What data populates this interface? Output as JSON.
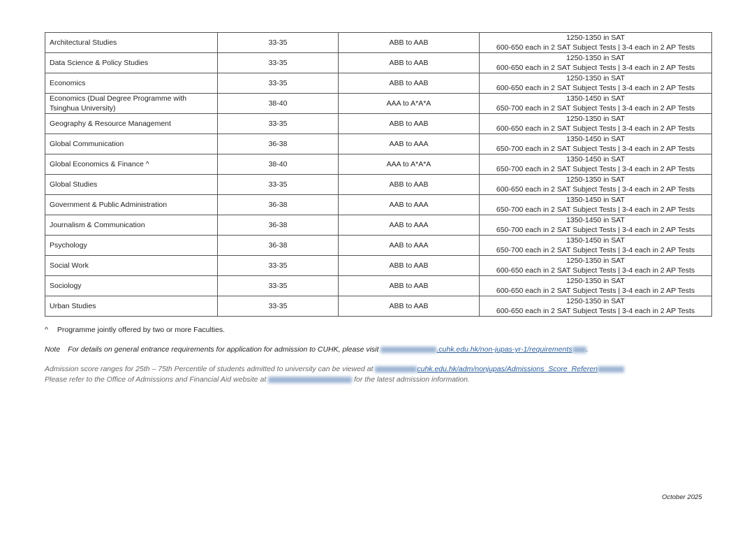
{
  "table": {
    "rows": [
      {
        "programme": "Architectural Studies",
        "ib": "33-35",
        "alevel": "ABB to AAB",
        "sat": "1250-1350 in SAT",
        "tests": "600-650 each in 2 SAT Subject Tests | 3-4 each in 2 AP Tests"
      },
      {
        "programme": "Data Science & Policy Studies",
        "ib": "33-35",
        "alevel": "ABB to AAB",
        "sat": "1250-1350 in SAT",
        "tests": "600-650 each in 2 SAT Subject Tests | 3-4 each in 2 AP Tests"
      },
      {
        "programme": "Economics",
        "ib": "33-35",
        "alevel": "ABB to AAB",
        "sat": "1250-1350 in SAT",
        "tests": "600-650 each in 2 SAT Subject Tests | 3-4 each in 2 AP Tests"
      },
      {
        "programme": "Economics (Dual Degree Programme with Tsinghua University)",
        "ib": "38-40",
        "alevel": "AAA to A*A*A",
        "sat": "1350-1450 in SAT",
        "tests": "650-700 each in 2 SAT Subject Tests | 3-4 each in 2 AP Tests"
      },
      {
        "programme": "Geography & Resource Management",
        "ib": "33-35",
        "alevel": "ABB to AAB",
        "sat": "1250-1350 in SAT",
        "tests": "600-650 each in 2 SAT Subject Tests | 3-4 each in 2 AP Tests"
      },
      {
        "programme": "Global Communication",
        "ib": "36-38",
        "alevel": "AAB to AAA",
        "sat": "1350-1450 in SAT",
        "tests": "650-700 each in 2 SAT Subject Tests | 3-4 each in 2 AP Tests"
      },
      {
        "programme": "Global Economics & Finance ^",
        "ib": "38-40",
        "alevel": "AAA to A*A*A",
        "sat": "1350-1450 in SAT",
        "tests": "650-700 each in 2 SAT Subject Tests | 3-4 each in 2 AP Tests"
      },
      {
        "programme": "Global Studies",
        "ib": "33-35",
        "alevel": "ABB to AAB",
        "sat": "1250-1350 in SAT",
        "tests": "600-650 each in 2 SAT Subject Tests | 3-4 each in 2 AP Tests"
      },
      {
        "programme": "Government & Public Administration",
        "ib": "36-38",
        "alevel": "AAB to AAA",
        "sat": "1350-1450 in SAT",
        "tests": "650-700 each in 2 SAT Subject Tests | 3-4 each in 2 AP Tests"
      },
      {
        "programme": "Journalism & Communication",
        "ib": "36-38",
        "alevel": "AAB to AAA",
        "sat": "1350-1450 in SAT",
        "tests": "650-700 each in 2 SAT Subject Tests | 3-4 each in 2 AP Tests"
      },
      {
        "programme": "Psychology",
        "ib": "36-38",
        "alevel": "AAB to AAA",
        "sat": "1350-1450 in SAT",
        "tests": "650-700 each in 2 SAT Subject Tests | 3-4 each in 2 AP Tests"
      },
      {
        "programme": "Social Work",
        "ib": "33-35",
        "alevel": "ABB to AAB",
        "sat": "1250-1350 in SAT",
        "tests": "600-650 each in 2 SAT Subject Tests | 3-4 each in 2 AP Tests"
      },
      {
        "programme": "Sociology",
        "ib": "33-35",
        "alevel": "ABB to AAB",
        "sat": "1250-1350 in SAT",
        "tests": "600-650 each in 2 SAT Subject Tests | 3-4 each in 2 AP Tests"
      },
      {
        "programme": "Urban Studies",
        "ib": "33-35",
        "alevel": "ABB to AAB",
        "sat": "1250-1350 in SAT",
        "tests": "600-650 each in 2 SAT Subject Tests | 3-4 each in 2 AP Tests"
      }
    ]
  },
  "footnotes": {
    "caret_symbol": "^",
    "caret_text": "Programme jointly offered by two or more Faculties.",
    "note_label": "Note",
    "note_text": "For details on general entrance requirements for application for admission to CUHK, please visit",
    "note_link_visible": ".cuhk.edu.hk/non-jupas-yr-1/requirements",
    "note_end": ".",
    "score_text": "Admission score ranges for 25th – 75th Percentile of students admitted to university can be viewed at",
    "score_link_visible": "cuhk.edu.hk/adm/nonjupas/Admissions_Score_Referen",
    "refer_text": "Please refer to the Office of Admissions and Financial Aid website at",
    "refer_end": "for the latest admission information.",
    "link_color": "#2a5e9c"
  },
  "date": "October 2025"
}
